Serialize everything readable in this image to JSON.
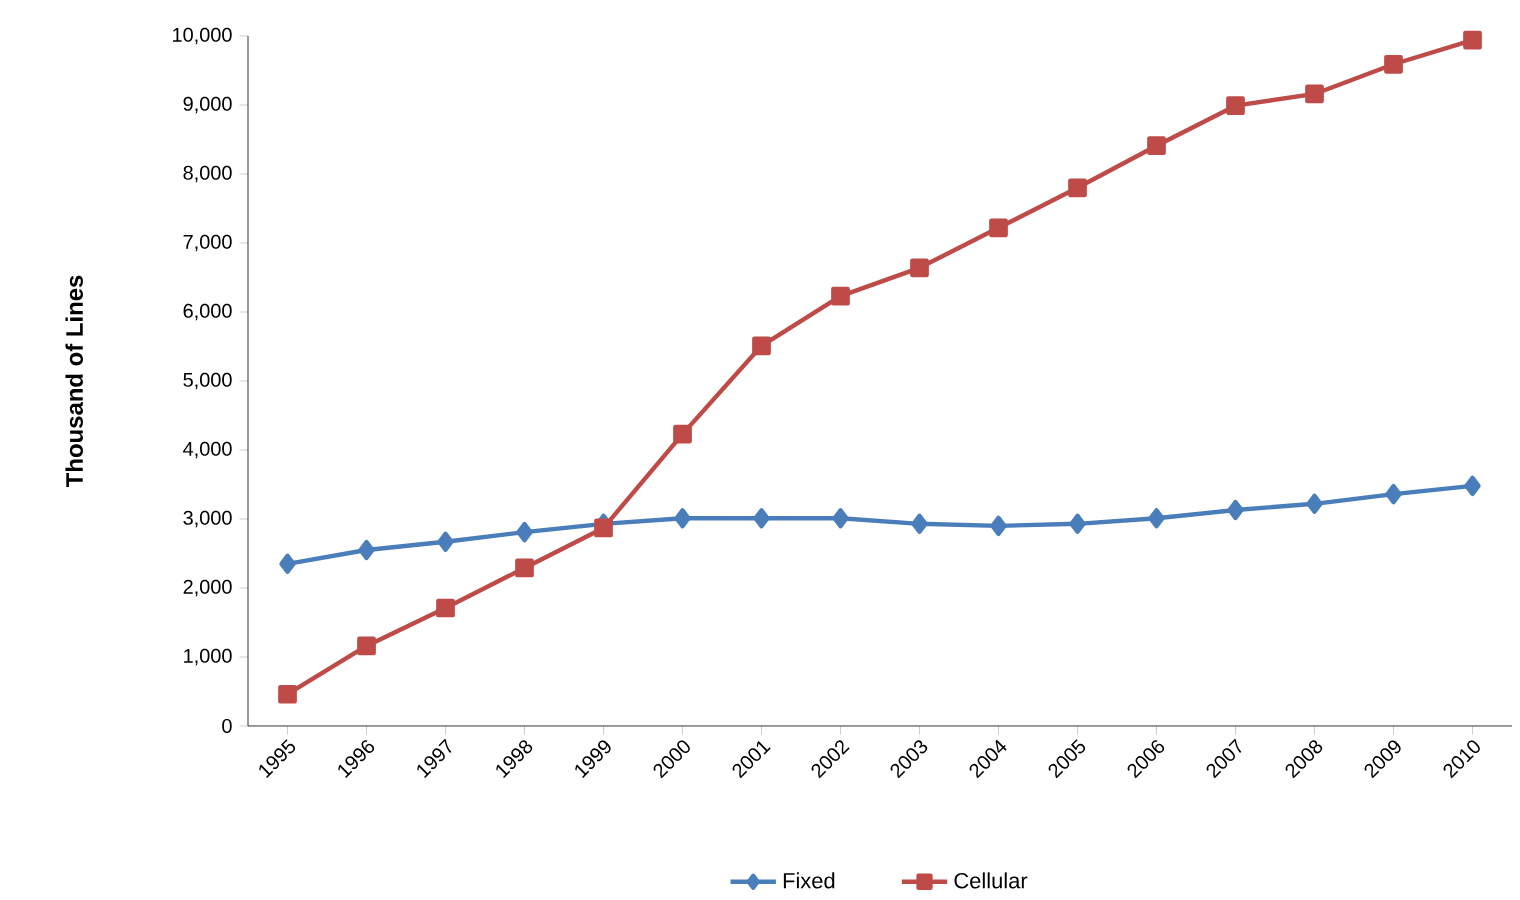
{
  "chart_data": {
    "type": "line",
    "ylabel": "Thousand of Lines",
    "categories": [
      "1995",
      "1996",
      "1997",
      "1998",
      "1999",
      "2000",
      "2001",
      "2002",
      "2003",
      "2004",
      "2005",
      "2006",
      "2007",
      "2008",
      "2009",
      "2010"
    ],
    "series": [
      {
        "name": "Fixed",
        "color": "#4a7ebb",
        "marker": "diamond",
        "values": [
          2350,
          2550,
          2670,
          2810,
          2930,
          3010,
          3010,
          3010,
          2930,
          2900,
          2930,
          3010,
          3130,
          3220,
          3360,
          3480
        ]
      },
      {
        "name": "Cellular",
        "color": "#be4b48",
        "marker": "square",
        "values": [
          460,
          1160,
          1710,
          2290,
          2870,
          4230,
          5510,
          6230,
          6640,
          7220,
          7800,
          8410,
          8990,
          9160,
          9590,
          9940
        ]
      }
    ],
    "ylim": [
      0,
      10000
    ],
    "yticks": [
      0,
      {
        "value": 1000,
        "label": "1,000"
      },
      {
        "value": 2000,
        "label": "2,000"
      },
      {
        "value": 3000,
        "label": "3,000"
      },
      {
        "value": 4000,
        "label": "4,000"
      },
      {
        "value": 5000,
        "label": "5,000"
      },
      {
        "value": 6000,
        "label": "6,000"
      },
      {
        "value": 7000,
        "label": "7,000"
      },
      {
        "value": 8000,
        "label": "8,000"
      },
      {
        "value": 9000,
        "label": "9,000"
      },
      {
        "value": 10000,
        "label": "10,000"
      }
    ],
    "grid": false,
    "legend": "bottom",
    "line_style": "solid"
  }
}
